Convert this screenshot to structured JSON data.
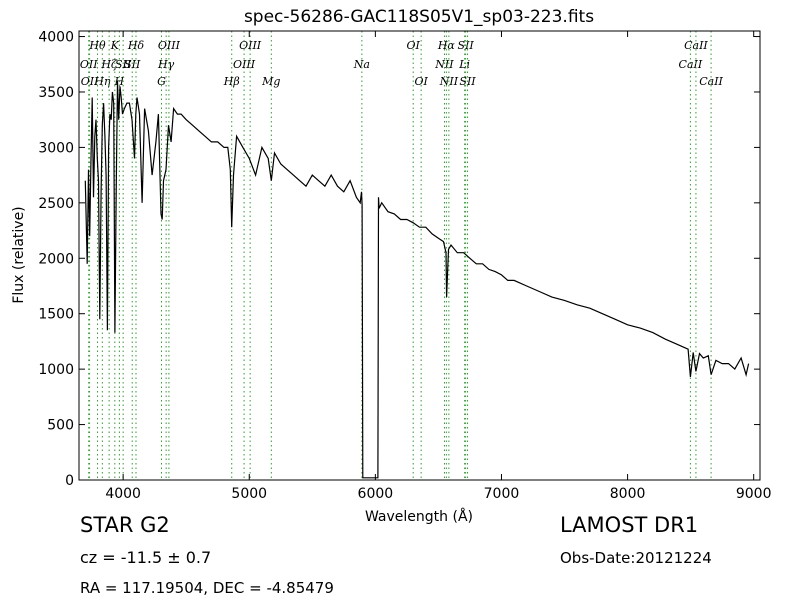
{
  "chart_data": {
    "type": "line",
    "title": "spec-56286-GAC118S05V1_sp03-223.fits",
    "xlabel": "Wavelength (Å)",
    "ylabel": "Flux (relative)",
    "xlim": [
      3650,
      9050
    ],
    "ylim": [
      0,
      4050
    ],
    "xticks": [
      4000,
      5000,
      6000,
      7000,
      8000,
      9000
    ],
    "yticks": [
      0,
      500,
      1000,
      1500,
      2000,
      2500,
      3000,
      3500,
      4000
    ],
    "grid": false,
    "line_color": "#000000",
    "marker_color": "#2ca02c",
    "series": [
      {
        "x": [
          3700,
          3715,
          3725,
          3735,
          3745,
          3755,
          3765,
          3775,
          3785,
          3795,
          3805,
          3815,
          3825,
          3835,
          3845,
          3855,
          3865,
          3875,
          3885,
          3895,
          3905,
          3915,
          3925,
          3935,
          3945,
          3955,
          3965,
          3975,
          3985,
          3995,
          4010,
          4030,
          4050,
          4070,
          4090,
          4100,
          4110,
          4130,
          4150,
          4170,
          4200,
          4230,
          4260,
          4280,
          4300,
          4310,
          4320,
          4340,
          4360,
          4380,
          4400,
          4430,
          4460,
          4500,
          4550,
          4600,
          4650,
          4700,
          4750,
          4800,
          4830,
          4850,
          4861,
          4875,
          4900,
          4950,
          5000,
          5050,
          5100,
          5150,
          5175,
          5200,
          5250,
          5300,
          5350,
          5400,
          5450,
          5500,
          5550,
          5600,
          5650,
          5700,
          5750,
          5800,
          5850,
          5880,
          5890,
          5895,
          5900,
          6020,
          6025,
          6030,
          6050,
          6100,
          6150,
          6200,
          6250,
          6300,
          6350,
          6400,
          6450,
          6500,
          6540,
          6560,
          6565,
          6580,
          6600,
          6650,
          6700,
          6750,
          6800,
          6850,
          6900,
          6950,
          7000,
          7050,
          7100,
          7200,
          7300,
          7400,
          7500,
          7600,
          7700,
          7800,
          7900,
          8000,
          8100,
          8200,
          8300,
          8400,
          8480,
          8498,
          8520,
          8542,
          8570,
          8600,
          8640,
          8662,
          8700,
          8750,
          8800,
          8850,
          8900,
          8940,
          8960
        ],
        "y": [
          2700,
          1950,
          2800,
          2200,
          2900,
          3450,
          2550,
          3100,
          3250,
          2900,
          2700,
          1450,
          2600,
          3200,
          3400,
          3100,
          2750,
          1350,
          3000,
          3300,
          3250,
          3500,
          3400,
          1330,
          2600,
          3600,
          3250,
          3550,
          3450,
          3300,
          3350,
          3400,
          3400,
          3250,
          2900,
          3300,
          3450,
          3300,
          2500,
          3350,
          3150,
          2750,
          3050,
          3300,
          2400,
          2350,
          2700,
          2800,
          3200,
          3050,
          3350,
          3300,
          3300,
          3250,
          3200,
          3150,
          3100,
          3050,
          3050,
          3000,
          3000,
          2800,
          2280,
          2750,
          3100,
          3000,
          2900,
          2750,
          3000,
          2900,
          2700,
          2950,
          2850,
          2800,
          2750,
          2700,
          2650,
          2750,
          2700,
          2650,
          2750,
          2650,
          2600,
          2700,
          2550,
          2500,
          2600,
          2480,
          20,
          20,
          2550,
          2450,
          2500,
          2420,
          2400,
          2350,
          2350,
          2320,
          2280,
          2280,
          2220,
          2180,
          2150,
          2050,
          1650,
          2080,
          2120,
          2050,
          2050,
          2000,
          1950,
          1950,
          1900,
          1880,
          1850,
          1800,
          1800,
          1750,
          1700,
          1650,
          1620,
          1580,
          1550,
          1500,
          1450,
          1400,
          1370,
          1330,
          1270,
          1220,
          1180,
          930,
          1150,
          980,
          1140,
          1100,
          1120,
          950,
          1080,
          1050,
          1050,
          1000,
          1100,
          950,
          1050
        ]
      }
    ],
    "line_markers": [
      {
        "wave": 3727,
        "label": "OII",
        "row": 1
      },
      {
        "wave": 3734,
        "label": "OII",
        "row": 2
      },
      {
        "wave": 3797,
        "label": "Hθ",
        "row": 0
      },
      {
        "wave": 3835,
        "label": "Hη",
        "row": 2
      },
      {
        "wave": 3889,
        "label": "Hζ",
        "row": 1
      },
      {
        "wave": 3934,
        "label": "K",
        "row": 0
      },
      {
        "wave": 3970,
        "label": "H",
        "row": 2
      },
      {
        "wave": 4000,
        "label": "SII",
        "row": 1
      },
      {
        "wave": 4072,
        "label": "SII",
        "row": 1
      },
      {
        "wave": 4102,
        "label": "Hδ",
        "row": 0
      },
      {
        "wave": 4304,
        "label": "G",
        "row": 2
      },
      {
        "wave": 4341,
        "label": "Hγ",
        "row": 1
      },
      {
        "wave": 4363,
        "label": "OIII",
        "row": 0
      },
      {
        "wave": 4861,
        "label": "Hβ",
        "row": 2
      },
      {
        "wave": 4959,
        "label": "OIII",
        "row": 1
      },
      {
        "wave": 5007,
        "label": "OIII",
        "row": 0
      },
      {
        "wave": 5175,
        "label": "Mg",
        "row": 2
      },
      {
        "wave": 5893,
        "label": "Na",
        "row": 1
      },
      {
        "wave": 6300,
        "label": "OI",
        "row": 0
      },
      {
        "wave": 6363,
        "label": "OI",
        "row": 2
      },
      {
        "wave": 6548,
        "label": "NII",
        "row": 1
      },
      {
        "wave": 6563,
        "label": "Hα",
        "row": 0
      },
      {
        "wave": 6583,
        "label": "NII",
        "row": 2
      },
      {
        "wave": 6708,
        "label": "Li",
        "row": 1
      },
      {
        "wave": 6716,
        "label": "SII",
        "row": 0
      },
      {
        "wave": 6731,
        "label": "SII",
        "row": 2
      },
      {
        "wave": 8498,
        "label": "CaII",
        "row": 1
      },
      {
        "wave": 8542,
        "label": "CaII",
        "row": 0
      },
      {
        "wave": 8662,
        "label": "CaII",
        "row": 2
      }
    ]
  },
  "info": {
    "object_class": "STAR   G2",
    "survey": "LAMOST DR1",
    "redshift": "cz = -11.5 ± 0.7",
    "obs_date": "Obs-Date:20121224",
    "coords": "RA = 117.19504, DEC = -4.85479"
  }
}
